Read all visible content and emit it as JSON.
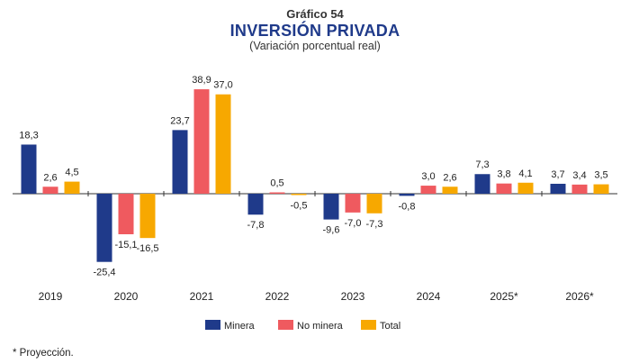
{
  "chart_data": {
    "type": "bar",
    "label": "Gráfico 54",
    "title": "INVERSIÓN PRIVADA",
    "subtitle": "(Variación porcentual real)",
    "categories": [
      "2019",
      "2020",
      "2021",
      "2022",
      "2023",
      "2024",
      "2025*",
      "2026*"
    ],
    "series": [
      {
        "name": "Minera",
        "color": "#1f3a8a",
        "values": [
          18.3,
          -25.4,
          23.7,
          -7.8,
          -9.6,
          -0.8,
          7.3,
          3.7
        ]
      },
      {
        "name": "No minera",
        "color": "#ef5a5f",
        "values": [
          2.6,
          -15.1,
          38.9,
          0.5,
          -7.0,
          3.0,
          3.8,
          3.4
        ]
      },
      {
        "name": "Total",
        "color": "#f7a800",
        "values": [
          4.5,
          -16.5,
          37.0,
          -0.5,
          -7.3,
          2.6,
          4.1,
          3.5
        ]
      }
    ],
    "value_labels": [
      [
        "18,3",
        "-25,4",
        "23,7",
        "-7,8",
        "-9,6",
        "-0,8",
        "7,3",
        "3,7"
      ],
      [
        "2,6",
        "-15,1",
        "38,9",
        "0,5",
        "-7,0",
        "3,0",
        "3,8",
        "3,4"
      ],
      [
        "4,5",
        "-16,5",
        "37,0",
        "-0,5",
        "-7,3",
        "2,6",
        "4,1",
        "3,5"
      ]
    ],
    "ylim": [
      -35,
      40
    ],
    "grid": false,
    "legend_position": "bottom"
  },
  "footnote": "* Proyección."
}
